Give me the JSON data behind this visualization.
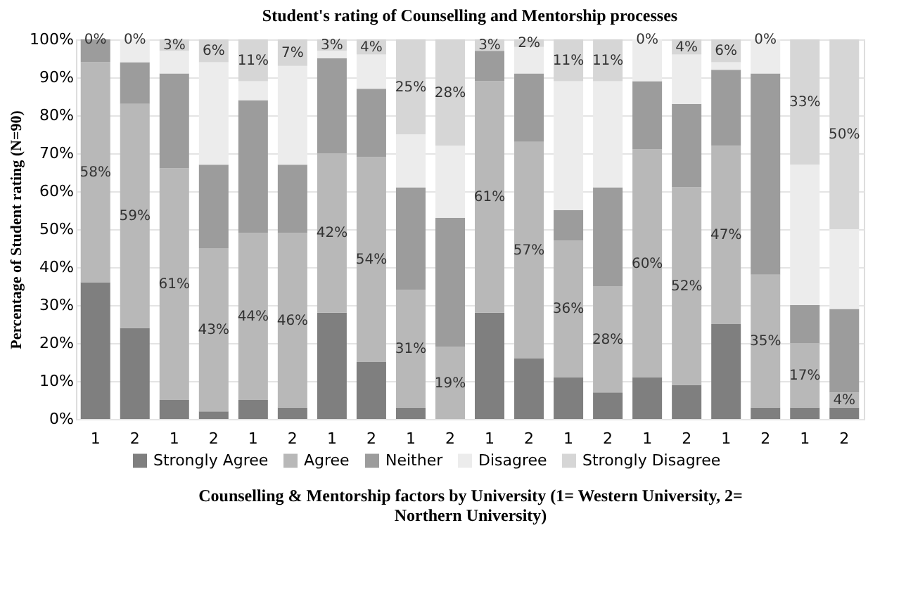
{
  "chart_data": {
    "type": "bar",
    "stacked": true,
    "title": "Student's rating of Counselling and Mentorship processes",
    "xlabel": "Counselling & Mentorship factors by University (1= Western University, 2= Northern University)",
    "ylabel": "Percentage of Student rating  (N=90)",
    "categories": [
      "1",
      "2",
      "1",
      "2",
      "1",
      "2",
      "1",
      "2",
      "1",
      "2",
      "1",
      "2",
      "1",
      "2",
      "1",
      "2",
      "1",
      "2",
      "1",
      "2"
    ],
    "ylim": [
      0,
      100
    ],
    "yticks": [
      {
        "value": 0,
        "label": "0%"
      },
      {
        "value": 10,
        "label": "10%"
      },
      {
        "value": 20,
        "label": "20%"
      },
      {
        "value": 30,
        "label": "30%"
      },
      {
        "value": 40,
        "label": "40%"
      },
      {
        "value": 50,
        "label": "50%"
      },
      {
        "value": 60,
        "label": "60%"
      },
      {
        "value": 70,
        "label": "70%"
      },
      {
        "value": 80,
        "label": "80%"
      },
      {
        "value": 90,
        "label": "90%"
      },
      {
        "value": 100,
        "label": "100%"
      }
    ],
    "grid": "y",
    "legend": "bottom",
    "series": [
      {
        "name": "Strongly Agree",
        "color": "#7f7f7f",
        "values": [
          36,
          24,
          5,
          2,
          5,
          3,
          28,
          15,
          3,
          0,
          28,
          16,
          11,
          7,
          11,
          9,
          25,
          3,
          3,
          3
        ]
      },
      {
        "name": "Agree",
        "color": "#b8b8b8",
        "values": [
          58,
          59,
          61,
          43,
          44,
          46,
          42,
          54,
          31,
          19,
          61,
          57,
          36,
          28,
          60,
          52,
          47,
          35,
          17,
          4
        ],
        "value_labels": [
          "58%",
          "59%",
          "61%",
          "43%",
          "44%",
          "46%",
          "42%",
          "54%",
          "31%",
          "19%",
          "61%",
          "57%",
          "36%",
          "28%",
          "60%",
          "52%",
          "47%",
          "35%",
          "17%",
          "4%"
        ]
      },
      {
        "name": "Neither",
        "color": "#9c9c9c",
        "values": [
          6,
          11,
          25,
          22,
          35,
          18,
          25,
          18,
          27,
          34,
          8,
          18,
          8,
          26,
          18,
          22,
          20,
          53,
          10,
          22
        ]
      },
      {
        "name": "Disagree",
        "color": "#ececec",
        "values": [
          0,
          6,
          6,
          27,
          5,
          26,
          2,
          9,
          14,
          19,
          0,
          7,
          34,
          28,
          11,
          13,
          2,
          9,
          37,
          21
        ]
      },
      {
        "name": "Strongly Disagree",
        "color": "#d6d6d6",
        "values": [
          0,
          0,
          3,
          6,
          11,
          7,
          3,
          4,
          25,
          28,
          3,
          2,
          11,
          11,
          0,
          4,
          6,
          0,
          33,
          50
        ],
        "value_labels": [
          "0%",
          "0%",
          "3%",
          "6%",
          "11%",
          "7%",
          "3%",
          "4%",
          "25%",
          "28%",
          "3%",
          "2%",
          "11%",
          "11%",
          "0%",
          "4%",
          "6%",
          "0%",
          "33%",
          "50%"
        ]
      }
    ]
  }
}
